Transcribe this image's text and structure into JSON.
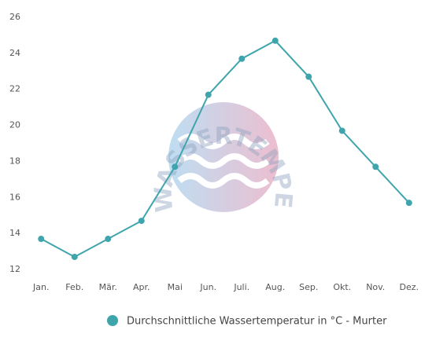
{
  "chart_data": {
    "type": "line",
    "watermark": "WASSERTEMPERATUR.ORG",
    "categories": [
      "Jan.",
      "Feb.",
      "Mär.",
      "Apr.",
      "Mai",
      "Jun.",
      "Juli.",
      "Aug.",
      "Sep.",
      "Okt.",
      "Nov.",
      "Dez."
    ],
    "series": [
      {
        "name": "Durchschnittliche Wassertemperatur in °C - Murter",
        "color": "#3fa5ad",
        "values": [
          13.7,
          12.7,
          13.7,
          14.7,
          17.7,
          21.7,
          23.7,
          24.7,
          22.7,
          19.7,
          17.7,
          15.7
        ]
      }
    ],
    "ylim": [
      12,
      26
    ],
    "yticks": [
      12,
      14,
      16,
      18,
      20,
      22,
      24,
      26
    ],
    "grid": false
  }
}
